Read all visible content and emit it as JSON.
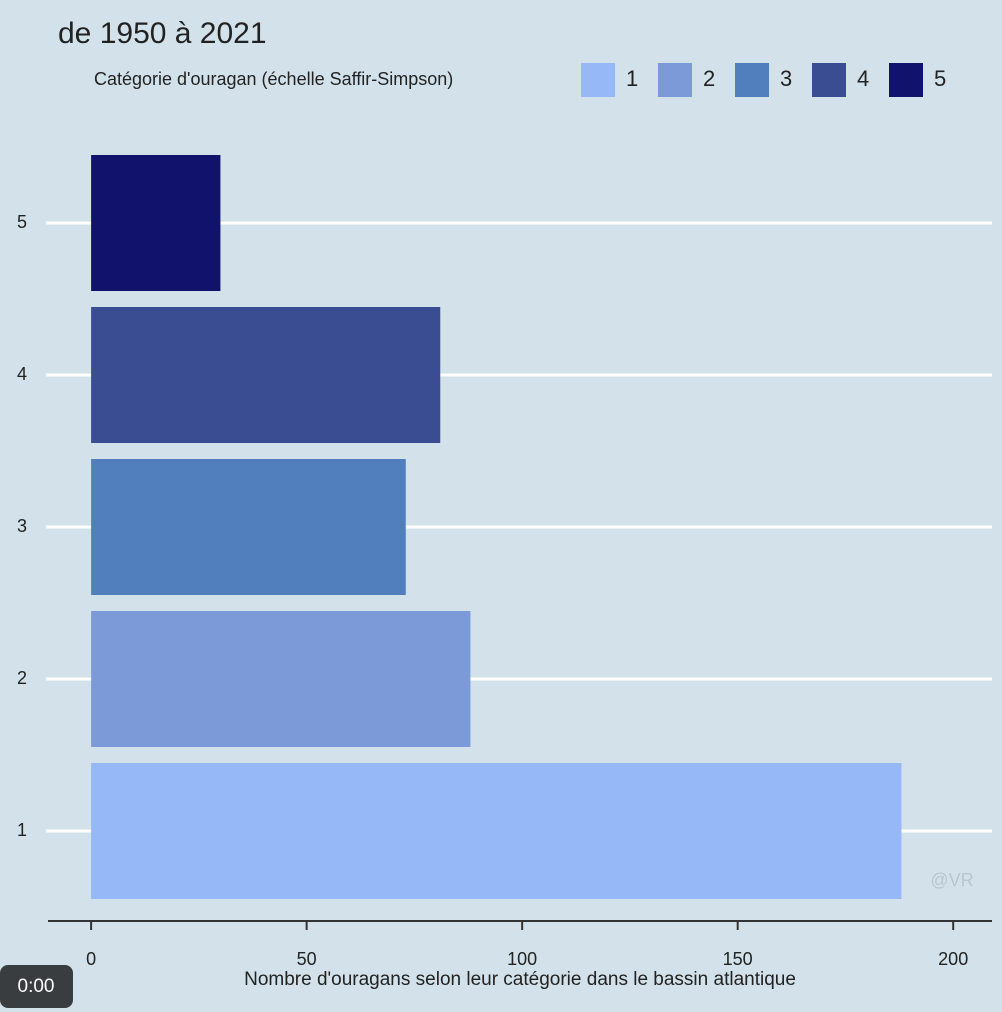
{
  "chart_data": {
    "type": "barh",
    "title": "de 1950 à 2021",
    "legend_title": "Catégorie d'ouragan (échelle Saffir-Simpson)",
    "x_label": "Nombre d'ouragans selon leur catégorie dans le bassin atlantique",
    "categories": [
      "1",
      "2",
      "3",
      "4",
      "5"
    ],
    "values": [
      188,
      88,
      73,
      81,
      30
    ],
    "colors": [
      "#97b8f7",
      "#7d9ad8",
      "#517fbd",
      "#3b4d92",
      "#11126b"
    ],
    "xlim": [
      -10,
      209
    ],
    "xticks": [
      0,
      50,
      100,
      150,
      200
    ],
    "grid": true,
    "legend": "top",
    "watermark": "@VR"
  },
  "video_time": "0:00"
}
